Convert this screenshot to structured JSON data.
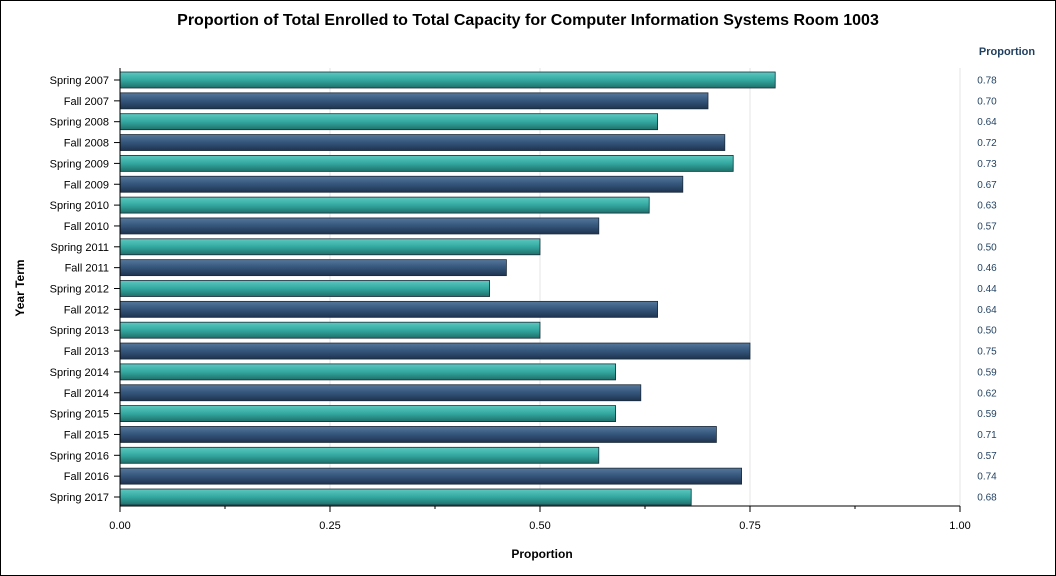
{
  "chart_data": {
    "type": "bar",
    "orientation": "horizontal",
    "title": "Proportion of Total Enrolled to Total Capacity for Computer Information Systems Room 1003",
    "xlabel": "Proportion",
    "ylabel": "Year Term",
    "xlim": [
      0,
      1
    ],
    "xticks": [
      "0.00",
      "0.25",
      "0.50",
      "0.75",
      "1.00"
    ],
    "grid": true,
    "value_column_header": "Proportion",
    "categories": [
      "Spring 2007",
      "Fall 2007",
      "Spring 2008",
      "Fall 2008",
      "Spring 2009",
      "Fall 2009",
      "Spring 2010",
      "Fall 2010",
      "Spring 2011",
      "Fall 2011",
      "Spring 2012",
      "Fall 2012",
      "Spring 2013",
      "Fall 2013",
      "Spring 2014",
      "Fall 2014",
      "Spring 2015",
      "Fall 2015",
      "Spring 2016",
      "Fall 2016",
      "Spring 2017"
    ],
    "values": [
      0.78,
      0.7,
      0.64,
      0.72,
      0.73,
      0.67,
      0.63,
      0.57,
      0.5,
      0.46,
      0.44,
      0.64,
      0.5,
      0.75,
      0.59,
      0.62,
      0.59,
      0.71,
      0.57,
      0.74,
      0.68
    ],
    "value_labels": [
      "0.78",
      "0.70",
      "0.64",
      "0.72",
      "0.73",
      "0.67",
      "0.63",
      "0.57",
      "0.50",
      "0.46",
      "0.44",
      "0.64",
      "0.50",
      "0.75",
      "0.59",
      "0.62",
      "0.59",
      "0.71",
      "0.57",
      "0.74",
      "0.68"
    ],
    "colors": {
      "spring": "#33a8a0",
      "fall": "#34557a",
      "gridline": "#e6e6e6"
    }
  }
}
